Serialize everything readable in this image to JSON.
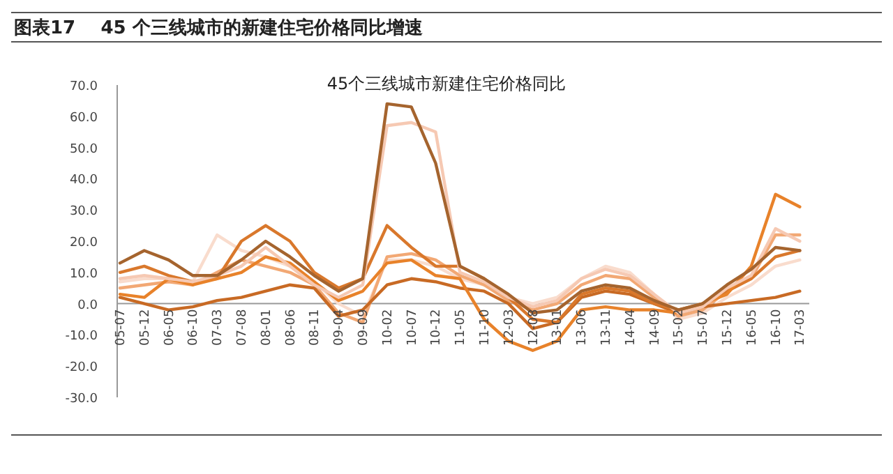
{
  "chart_data": {
    "type": "line",
    "title": "图表17    45 个三线城市的新建住宅价格同比增速",
    "subtitle": "45个三线城市新建住宅价格同比",
    "categories": [
      "05-07",
      "05-12",
      "06-05",
      "06-10",
      "07-03",
      "07-08",
      "08-01",
      "08-06",
      "08-11",
      "09-04",
      "09-09",
      "10-02",
      "10-07",
      "10-12",
      "11-05",
      "11-10",
      "12-03",
      "12-08",
      "13-01",
      "13-06",
      "13-11",
      "14-04",
      "14-09",
      "15-02",
      "15-07",
      "15-12",
      "16-05",
      "16-10",
      "17-03"
    ],
    "series": [
      {
        "color": "#f9dccd",
        "values": [
          7,
          8,
          8,
          7,
          22,
          17,
          15,
          12,
          7,
          0,
          -4,
          14,
          14,
          12,
          8,
          6,
          2,
          0,
          2,
          8,
          12,
          10,
          3,
          -5,
          -3,
          2,
          6,
          12,
          14
        ]
      },
      {
        "color": "#f2a874",
        "values": [
          5,
          6,
          7,
          6,
          10,
          14,
          12,
          10,
          6,
          -3,
          -6,
          15,
          16,
          14,
          9,
          6,
          1,
          -2,
          0,
          6,
          9,
          8,
          2,
          -4,
          -2,
          4,
          8,
          22,
          22
        ]
      },
      {
        "color": "#c86a24",
        "values": [
          2,
          0,
          -2,
          -1,
          1,
          2,
          4,
          6,
          5,
          -4,
          -2,
          6,
          8,
          7,
          5,
          4,
          0,
          -8,
          -6,
          2,
          4,
          3,
          0,
          -3,
          -1,
          0,
          1,
          2,
          4
        ]
      },
      {
        "color": "#d9782c",
        "values": [
          10,
          12,
          9,
          7,
          8,
          20,
          25,
          20,
          10,
          5,
          8,
          25,
          18,
          12,
          12,
          8,
          2,
          -5,
          -6,
          3,
          5,
          4,
          0,
          -2,
          0,
          4,
          8,
          15,
          17
        ]
      },
      {
        "color": "#e8822a",
        "values": [
          3,
          2,
          8,
          6,
          8,
          10,
          15,
          13,
          7,
          1,
          4,
          13,
          14,
          9,
          8,
          -5,
          -12,
          -15,
          -12,
          -2,
          -1,
          -2,
          -2,
          -3,
          0,
          3,
          12,
          35,
          31
        ]
      },
      {
        "color": "#f6c9b3",
        "values": [
          8,
          9,
          8,
          7,
          9,
          12,
          18,
          12,
          6,
          2,
          6,
          57,
          58,
          55,
          10,
          7,
          2,
          -1,
          1,
          8,
          11,
          9,
          3,
          -3,
          -1,
          5,
          9,
          24,
          20
        ]
      },
      {
        "color": "#a5642e",
        "values": [
          13,
          17,
          14,
          9,
          9,
          14,
          20,
          15,
          9,
          4,
          8,
          64,
          63,
          45,
          12,
          8,
          3,
          -3,
          -2,
          4,
          6,
          5,
          1,
          -2,
          0,
          6,
          11,
          18,
          17
        ]
      }
    ],
    "ylim": [
      -30,
      70
    ],
    "yticks": [
      {
        "value": 70,
        "label": "70.0"
      },
      {
        "value": 60,
        "label": "60.0"
      },
      {
        "value": 50,
        "label": "50.0"
      },
      {
        "value": 40,
        "label": "40.0"
      },
      {
        "value": 30,
        "label": "30.0"
      },
      {
        "value": 20,
        "label": "20.0"
      },
      {
        "value": 10,
        "label": "10.0"
      },
      {
        "value": 0,
        "label": "0.0"
      },
      {
        "value": -10,
        "label": "-10.0"
      },
      {
        "value": -20,
        "label": "-20.0"
      },
      {
        "value": -30,
        "label": "-30.0"
      }
    ]
  }
}
